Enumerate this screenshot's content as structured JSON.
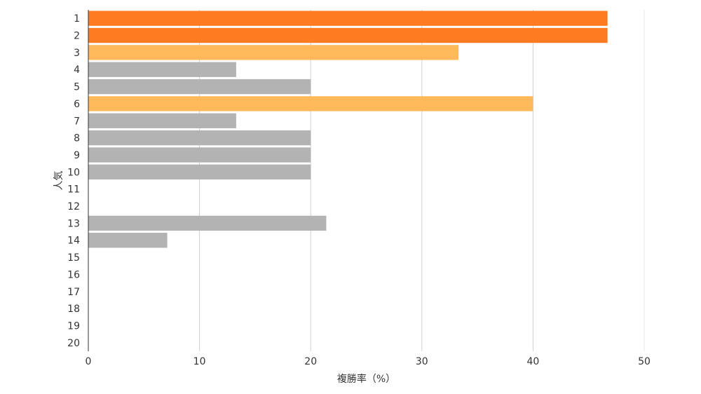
{
  "chart_data": {
    "type": "bar",
    "orientation": "horizontal",
    "categories": [
      "1",
      "2",
      "3",
      "4",
      "5",
      "6",
      "7",
      "8",
      "9",
      "10",
      "11",
      "12",
      "13",
      "14",
      "15",
      "16",
      "17",
      "18",
      "19",
      "20"
    ],
    "values": [
      46.7,
      46.7,
      33.3,
      13.3,
      20.0,
      40.0,
      13.3,
      20.0,
      20.0,
      20.0,
      0,
      0,
      21.4,
      7.1,
      0,
      0,
      0,
      0,
      0,
      0
    ],
    "bar_colors": [
      "#ff7b22",
      "#ff7b22",
      "#ffb85a",
      "#b3b3b3",
      "#b3b3b3",
      "#ffb85a",
      "#b3b3b3",
      "#b3b3b3",
      "#b3b3b3",
      "#b3b3b3",
      "#b3b3b3",
      "#b3b3b3",
      "#b3b3b3",
      "#b3b3b3",
      "#b3b3b3",
      "#b3b3b3",
      "#b3b3b3",
      "#b3b3b3",
      "#b3b3b3",
      "#b3b3b3"
    ],
    "xlabel": "複勝率（%）",
    "ylabel": "人気",
    "xlim": [
      0,
      50
    ],
    "xticks": [
      "0",
      "10",
      "20",
      "30",
      "40",
      "50"
    ],
    "grid": true,
    "gridline_color": "#d0d0d0"
  }
}
